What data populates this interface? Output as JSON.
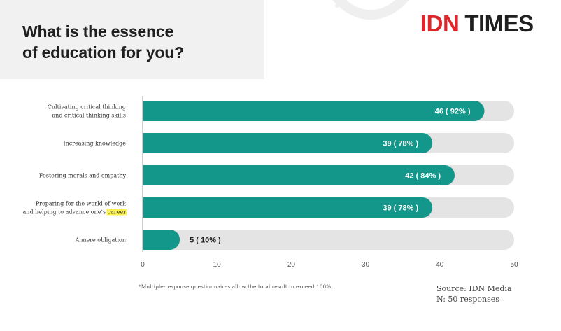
{
  "title": {
    "line1": "What is the essence",
    "line2": "of education for you?"
  },
  "logo": {
    "part1": "IDN",
    "part2": "TIMES"
  },
  "colors": {
    "bar": "#13978a",
    "track": "#e4e4e4",
    "highlight": "#fbf04e",
    "logo_red": "#e0262b"
  },
  "chart_data": {
    "type": "bar",
    "orientation": "horizontal",
    "categories": [
      [
        "Cultivating critical thinking",
        "and critical thinking skills"
      ],
      [
        "Increasing knowledge"
      ],
      [
        "Fostering morals and empathy"
      ],
      [
        "Preparing for the world of work",
        "and helping to advance one’s career"
      ],
      [
        "A mere obligation"
      ]
    ],
    "highlighted_word": "career",
    "values": [
      46,
      39,
      42,
      39,
      5
    ],
    "percents": [
      92,
      78,
      84,
      78,
      10
    ],
    "data_labels": [
      "46 ( 92% )",
      "39 ( 78% )",
      "42 ( 84% )",
      "39 ( 78% )",
      "5 ( 10% )"
    ],
    "xlim": [
      0,
      50
    ],
    "xticks": [
      0,
      10,
      20,
      30,
      40,
      50
    ],
    "grid": false
  },
  "footnote": "*Multiple-response questionnaires allow the total result to exceed 100%.",
  "source": {
    "line1": "Source: IDN Media",
    "line2": "N: 50 responses"
  }
}
